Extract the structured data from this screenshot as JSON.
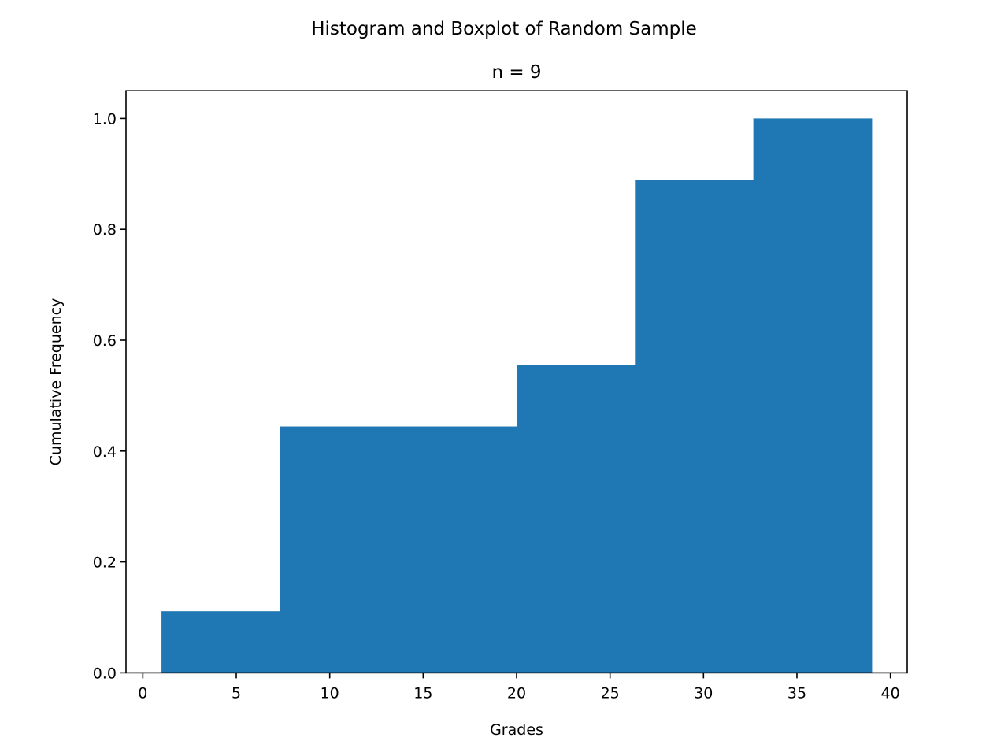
{
  "figure": {
    "suptitle": "Histogram and Boxplot of Random Sample"
  },
  "chart_data": {
    "type": "bar",
    "title": "n = 9",
    "xlabel": "Grades",
    "ylabel": "Cumulative Frequency",
    "histogram": "cumulative",
    "bin_edges": [
      1.0,
      7.333,
      13.667,
      20.0,
      26.333,
      32.667,
      39.0
    ],
    "values": [
      0.1111,
      0.4444,
      0.4444,
      0.5556,
      0.8889,
      1.0
    ],
    "xlim": [
      -0.9,
      40.9
    ],
    "ylim": [
      0.0,
      1.05
    ],
    "xticks": [
      0,
      5,
      10,
      15,
      20,
      25,
      30,
      35,
      40
    ],
    "xtick_labels": [
      "0",
      "5",
      "10",
      "15",
      "20",
      "25",
      "30",
      "35",
      "40"
    ],
    "yticks": [
      0.0,
      0.2,
      0.4,
      0.6,
      0.8,
      1.0
    ],
    "ytick_labels": [
      "0.0",
      "0.2",
      "0.4",
      "0.6",
      "0.8",
      "1.0"
    ],
    "bar_color": "#1f77b4",
    "grid": false,
    "legend": false
  }
}
